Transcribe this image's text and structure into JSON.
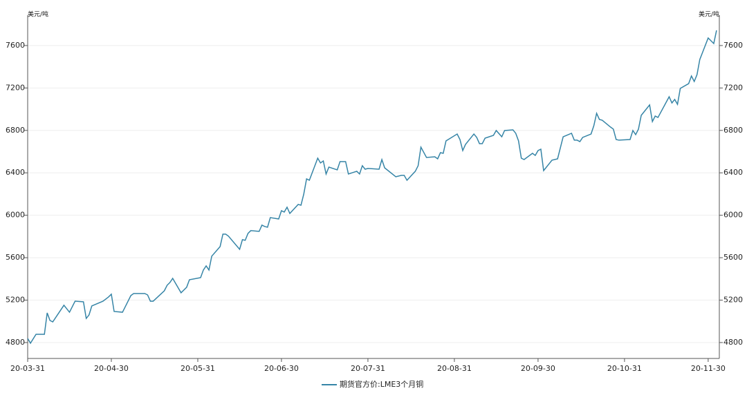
{
  "chart_data": {
    "type": "line",
    "ylabel": "美元/吨",
    "y2label": "美元/吨",
    "x": [
      "20-03-31",
      "20-04-01",
      "20-04-03",
      "20-04-06",
      "20-04-07",
      "20-04-08",
      "20-04-09",
      "20-04-13",
      "20-04-15",
      "20-04-17",
      "20-04-20",
      "20-04-21",
      "20-04-22",
      "20-04-23",
      "20-04-27",
      "20-04-29",
      "20-04-30",
      "20-05-01",
      "20-05-04",
      "20-05-05",
      "20-05-07",
      "20-05-08",
      "20-05-12",
      "20-05-13",
      "20-05-14",
      "20-05-15",
      "20-05-19",
      "20-05-20",
      "20-05-21",
      "20-05-22",
      "20-05-25",
      "20-05-27",
      "20-05-28",
      "20-06-01",
      "20-06-02",
      "20-06-03",
      "20-06-04",
      "20-06-05",
      "20-06-08",
      "20-06-09",
      "20-06-10",
      "20-06-11",
      "20-06-15",
      "20-06-16",
      "20-06-17",
      "20-06-18",
      "20-06-19",
      "20-06-22",
      "20-06-23",
      "20-06-24",
      "20-06-25",
      "20-06-26",
      "20-06-29",
      "20-06-30",
      "20-07-01",
      "20-07-02",
      "20-07-03",
      "20-07-06",
      "20-07-07",
      "20-07-08",
      "20-07-09",
      "20-07-10",
      "20-07-13",
      "20-07-14",
      "20-07-15",
      "20-07-16",
      "20-07-17",
      "20-07-20",
      "20-07-21",
      "20-07-23",
      "20-07-24",
      "20-07-27",
      "20-07-28",
      "20-07-29",
      "20-07-30",
      "20-07-31",
      "20-08-04",
      "20-08-05",
      "20-08-06",
      "20-08-10",
      "20-08-12",
      "20-08-13",
      "20-08-14",
      "20-08-17",
      "20-08-18",
      "20-08-19",
      "20-08-21",
      "20-08-24",
      "20-08-25",
      "20-08-26",
      "20-08-27",
      "20-08-28",
      "20-09-01",
      "20-09-02",
      "20-09-03",
      "20-09-04",
      "20-09-07",
      "20-09-08",
      "20-09-09",
      "20-09-10",
      "20-09-11",
      "20-09-14",
      "20-09-15",
      "20-09-17",
      "20-09-18",
      "20-09-21",
      "20-09-22",
      "20-09-23",
      "20-09-24",
      "20-09-25",
      "20-09-28",
      "20-09-29",
      "20-09-30",
      "20-10-01",
      "20-10-02",
      "20-10-05",
      "20-10-07",
      "20-10-09",
      "20-10-12",
      "20-10-13",
      "20-10-14",
      "20-10-15",
      "20-10-16",
      "20-10-19",
      "20-10-20",
      "20-10-21",
      "20-10-22",
      "20-10-23",
      "20-10-26",
      "20-10-27",
      "20-10-28",
      "20-10-29",
      "20-11-02",
      "20-11-03",
      "20-11-04",
      "20-11-05",
      "20-11-06",
      "20-11-09",
      "20-11-10",
      "20-11-11",
      "20-11-12",
      "20-11-16",
      "20-11-17",
      "20-11-18",
      "20-11-19",
      "20-11-20",
      "20-11-23",
      "20-11-24",
      "20-11-25",
      "20-11-26",
      "20-11-27",
      "20-11-30",
      "20-12-01",
      "20-12-02",
      "20-12-03"
    ],
    "series": [
      {
        "name": "期货官方价:LME3个月铜",
        "color": "#3584a6",
        "values": [
          4839,
          4794,
          4878,
          4878,
          5080,
          5008,
          4995,
          5152,
          5086,
          5190,
          5184,
          5028,
          5060,
          5145,
          5190,
          5230,
          5256,
          5093,
          5086,
          5138,
          5243,
          5262,
          5262,
          5249,
          5190,
          5190,
          5288,
          5340,
          5366,
          5405,
          5269,
          5321,
          5392,
          5412,
          5484,
          5523,
          5484,
          5614,
          5705,
          5822,
          5822,
          5803,
          5679,
          5770,
          5764,
          5829,
          5855,
          5848,
          5907,
          5894,
          5887,
          5978,
          5965,
          6043,
          6030,
          6076,
          6017,
          6102,
          6095,
          6200,
          6343,
          6330,
          6538,
          6493,
          6512,
          6389,
          6454,
          6428,
          6506,
          6506,
          6389,
          6415,
          6389,
          6467,
          6434,
          6441,
          6434,
          6525,
          6447,
          6363,
          6376,
          6376,
          6330,
          6415,
          6467,
          6642,
          6545,
          6551,
          6532,
          6590,
          6584,
          6701,
          6766,
          6714,
          6610,
          6668,
          6766,
          6734,
          6675,
          6675,
          6727,
          6753,
          6799,
          6740,
          6799,
          6805,
          6773,
          6701,
          6538,
          6525,
          6584,
          6564,
          6610,
          6623,
          6421,
          6519,
          6532,
          6740,
          6773,
          6708,
          6708,
          6694,
          6734,
          6766,
          6844,
          6961,
          6903,
          6896,
          6831,
          6812,
          6714,
          6708,
          6714,
          6799,
          6760,
          6812,
          6942,
          7040,
          6883,
          6935,
          6922,
          7117,
          7059,
          7092,
          7046,
          7196,
          7241,
          7313,
          7261,
          7326,
          7469,
          7671,
          7645,
          7619,
          7743
        ]
      }
    ],
    "xlim": [
      "20-03-31",
      "20-12-04"
    ],
    "xticks": [
      "20-03-31",
      "20-04-30",
      "20-05-31",
      "20-06-30",
      "20-07-31",
      "20-08-31",
      "20-09-30",
      "20-10-31",
      "20-11-30"
    ],
    "ylim": [
      4650,
      7886
    ],
    "yticks": [
      4800,
      5200,
      5600,
      6000,
      6400,
      6800,
      7200,
      7600
    ],
    "y2lim": [
      4650,
      7886
    ],
    "y2ticks": [
      4800,
      5200,
      5600,
      6000,
      6400,
      6800,
      7200,
      7600
    ],
    "grid": true
  }
}
